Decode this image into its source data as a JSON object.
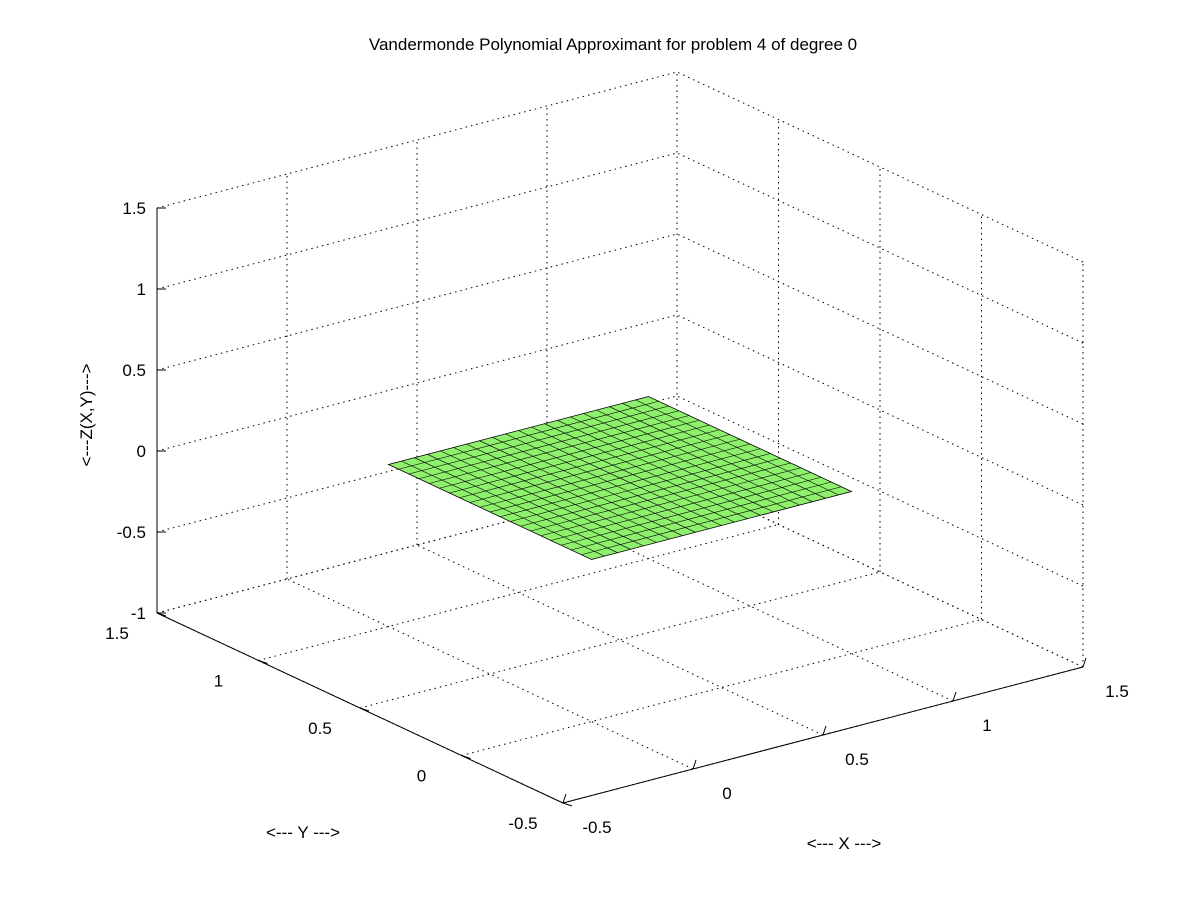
{
  "chart_data": {
    "type": "surface",
    "title": "Vandermonde Polynomial Approximant for problem 4 of degree 0",
    "xlabel": "<--- X --->",
    "ylabel": "<--- Y --->",
    "zlabel": "<---Z(X,Y)--->",
    "xlim": [
      -0.5,
      1.5
    ],
    "ylim": [
      -0.5,
      1.5
    ],
    "zlim": [
      -1,
      1.5
    ],
    "x_ticks": [
      -0.5,
      0,
      0.5,
      1,
      1.5
    ],
    "y_ticks": [
      -0.5,
      0,
      0.5,
      1,
      1.5
    ],
    "z_ticks": [
      -1,
      -0.5,
      0,
      0.5,
      1,
      1.5
    ],
    "x_tick_labels": [
      "-0.5",
      "0",
      "0.5",
      "1",
      "1.5"
    ],
    "y_tick_labels": [
      "-0.5",
      "0",
      "0.5",
      "1",
      "1.5"
    ],
    "z_tick_labels": [
      "-1",
      "-0.5",
      "0",
      "0.5",
      "1",
      "1.5"
    ],
    "surface": {
      "x_range": [
        0,
        1
      ],
      "y_range": [
        0,
        1
      ],
      "z_value": 0,
      "mesh_divisions": 20,
      "face_color": "#8ef06c",
      "edge_color": "#000000"
    },
    "grid": true
  }
}
